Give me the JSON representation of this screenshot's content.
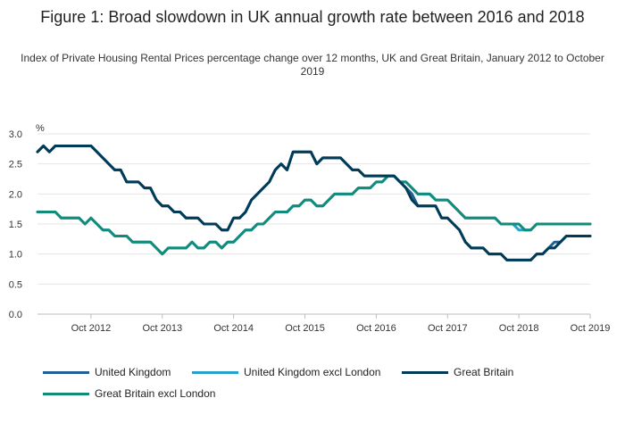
{
  "chart_data": {
    "type": "line",
    "title": "Figure 1: Broad slowdown in UK annual growth rate between 2016 and 2018",
    "subtitle": "Index of Private Housing Rental Prices percentage change over 12 months, UK and Great Britain, January 2012 to October 2019",
    "ylabel": "%",
    "ylim": [
      0,
      3
    ],
    "yticks": [
      "0.0",
      "0.5",
      "1.0",
      "1.5",
      "2.0",
      "2.5",
      "3.0"
    ],
    "x_start": "Jan 2012",
    "x_ticks": [
      {
        "label": "Oct 2012",
        "index": 9
      },
      {
        "label": "Oct 2013",
        "index": 21
      },
      {
        "label": "Oct 2014",
        "index": 33
      },
      {
        "label": "Oct 2015",
        "index": 45
      },
      {
        "label": "Oct 2016",
        "index": 57
      },
      {
        "label": "Oct 2017",
        "index": 69
      },
      {
        "label": "Oct 2018",
        "index": 81
      },
      {
        "label": "Oct 2019",
        "index": 93
      }
    ],
    "series": [
      {
        "name": "United Kingdom",
        "color": "#206095",
        "values": [
          2.7,
          2.8,
          2.7,
          2.8,
          2.8,
          2.8,
          2.8,
          2.8,
          2.8,
          2.8,
          2.7,
          2.6,
          2.5,
          2.4,
          2.4,
          2.2,
          2.2,
          2.2,
          2.1,
          2.1,
          1.9,
          1.8,
          1.8,
          1.7,
          1.7,
          1.6,
          1.6,
          1.6,
          1.5,
          1.5,
          1.5,
          1.4,
          1.4,
          1.6,
          1.6,
          1.7,
          1.9,
          2.0,
          2.1,
          2.2,
          2.4,
          2.5,
          2.4,
          2.7,
          2.7,
          2.7,
          2.7,
          2.5,
          2.6,
          2.6,
          2.6,
          2.6,
          2.5,
          2.4,
          2.4,
          2.3,
          2.3,
          2.3,
          2.3,
          2.3,
          2.3,
          2.2,
          2.1,
          2.0,
          1.8,
          1.8,
          1.8,
          1.8,
          1.6,
          1.6,
          1.5,
          1.4,
          1.2,
          1.1,
          1.1,
          1.1,
          1.0,
          1.0,
          1.0,
          0.9,
          0.9,
          0.9,
          0.9,
          0.9,
          1.0,
          1.0,
          1.1,
          1.2,
          1.2,
          1.3,
          1.3,
          1.3,
          1.3,
          1.3
        ]
      },
      {
        "name": "United Kingdom excl London",
        "color": "#27a0cc",
        "values": [
          1.7,
          1.7,
          1.7,
          1.7,
          1.6,
          1.6,
          1.6,
          1.6,
          1.5,
          1.6,
          1.5,
          1.4,
          1.4,
          1.3,
          1.3,
          1.3,
          1.2,
          1.2,
          1.2,
          1.2,
          1.1,
          1.0,
          1.1,
          1.1,
          1.1,
          1.1,
          1.2,
          1.1,
          1.1,
          1.2,
          1.2,
          1.1,
          1.2,
          1.2,
          1.3,
          1.4,
          1.4,
          1.5,
          1.5,
          1.6,
          1.7,
          1.7,
          1.7,
          1.8,
          1.8,
          1.9,
          1.9,
          1.8,
          1.8,
          1.9,
          2.0,
          2.0,
          2.0,
          2.0,
          2.1,
          2.1,
          2.1,
          2.2,
          2.2,
          2.3,
          2.3,
          2.2,
          2.2,
          2.1,
          2.0,
          2.0,
          2.0,
          1.9,
          1.9,
          1.9,
          1.8,
          1.7,
          1.6,
          1.6,
          1.6,
          1.6,
          1.6,
          1.6,
          1.5,
          1.5,
          1.5,
          1.4,
          1.4,
          1.4,
          1.5,
          1.5,
          1.5,
          1.5,
          1.5,
          1.5,
          1.5,
          1.5,
          1.5,
          1.5
        ]
      },
      {
        "name": "Great Britain",
        "color": "#003c57",
        "values": [
          2.7,
          2.8,
          2.7,
          2.8,
          2.8,
          2.8,
          2.8,
          2.8,
          2.8,
          2.8,
          2.7,
          2.6,
          2.5,
          2.4,
          2.4,
          2.2,
          2.2,
          2.2,
          2.1,
          2.1,
          1.9,
          1.8,
          1.8,
          1.7,
          1.7,
          1.6,
          1.6,
          1.6,
          1.5,
          1.5,
          1.5,
          1.4,
          1.4,
          1.6,
          1.6,
          1.7,
          1.9,
          2.0,
          2.1,
          2.2,
          2.4,
          2.5,
          2.4,
          2.7,
          2.7,
          2.7,
          2.7,
          2.5,
          2.6,
          2.6,
          2.6,
          2.6,
          2.5,
          2.4,
          2.4,
          2.3,
          2.3,
          2.3,
          2.3,
          2.3,
          2.3,
          2.2,
          2.1,
          1.9,
          1.8,
          1.8,
          1.8,
          1.8,
          1.6,
          1.6,
          1.5,
          1.4,
          1.2,
          1.1,
          1.1,
          1.1,
          1.0,
          1.0,
          1.0,
          0.9,
          0.9,
          0.9,
          0.9,
          0.9,
          1.0,
          1.0,
          1.1,
          1.1,
          1.2,
          1.3,
          1.3,
          1.3,
          1.3,
          1.3
        ]
      },
      {
        "name": "Great Britain excl London",
        "color": "#118c7b",
        "values": [
          1.7,
          1.7,
          1.7,
          1.7,
          1.6,
          1.6,
          1.6,
          1.6,
          1.5,
          1.6,
          1.5,
          1.4,
          1.4,
          1.3,
          1.3,
          1.3,
          1.2,
          1.2,
          1.2,
          1.2,
          1.1,
          1.0,
          1.1,
          1.1,
          1.1,
          1.1,
          1.2,
          1.1,
          1.1,
          1.2,
          1.2,
          1.1,
          1.2,
          1.2,
          1.3,
          1.4,
          1.4,
          1.5,
          1.5,
          1.6,
          1.7,
          1.7,
          1.7,
          1.8,
          1.8,
          1.9,
          1.9,
          1.8,
          1.8,
          1.9,
          2.0,
          2.0,
          2.0,
          2.0,
          2.1,
          2.1,
          2.1,
          2.2,
          2.2,
          2.3,
          2.3,
          2.2,
          2.2,
          2.1,
          2.0,
          2.0,
          2.0,
          1.9,
          1.9,
          1.9,
          1.8,
          1.7,
          1.6,
          1.6,
          1.6,
          1.6,
          1.6,
          1.6,
          1.5,
          1.5,
          1.5,
          1.5,
          1.4,
          1.4,
          1.5,
          1.5,
          1.5,
          1.5,
          1.5,
          1.5,
          1.5,
          1.5,
          1.5,
          1.5
        ]
      }
    ],
    "legend": [
      {
        "label": "United Kingdom",
        "color": "#206095"
      },
      {
        "label": "United Kingdom excl London",
        "color": "#27a0cc"
      },
      {
        "label": "Great Britain",
        "color": "#003c57"
      },
      {
        "label": "Great Britain excl London",
        "color": "#118c7b"
      }
    ]
  }
}
